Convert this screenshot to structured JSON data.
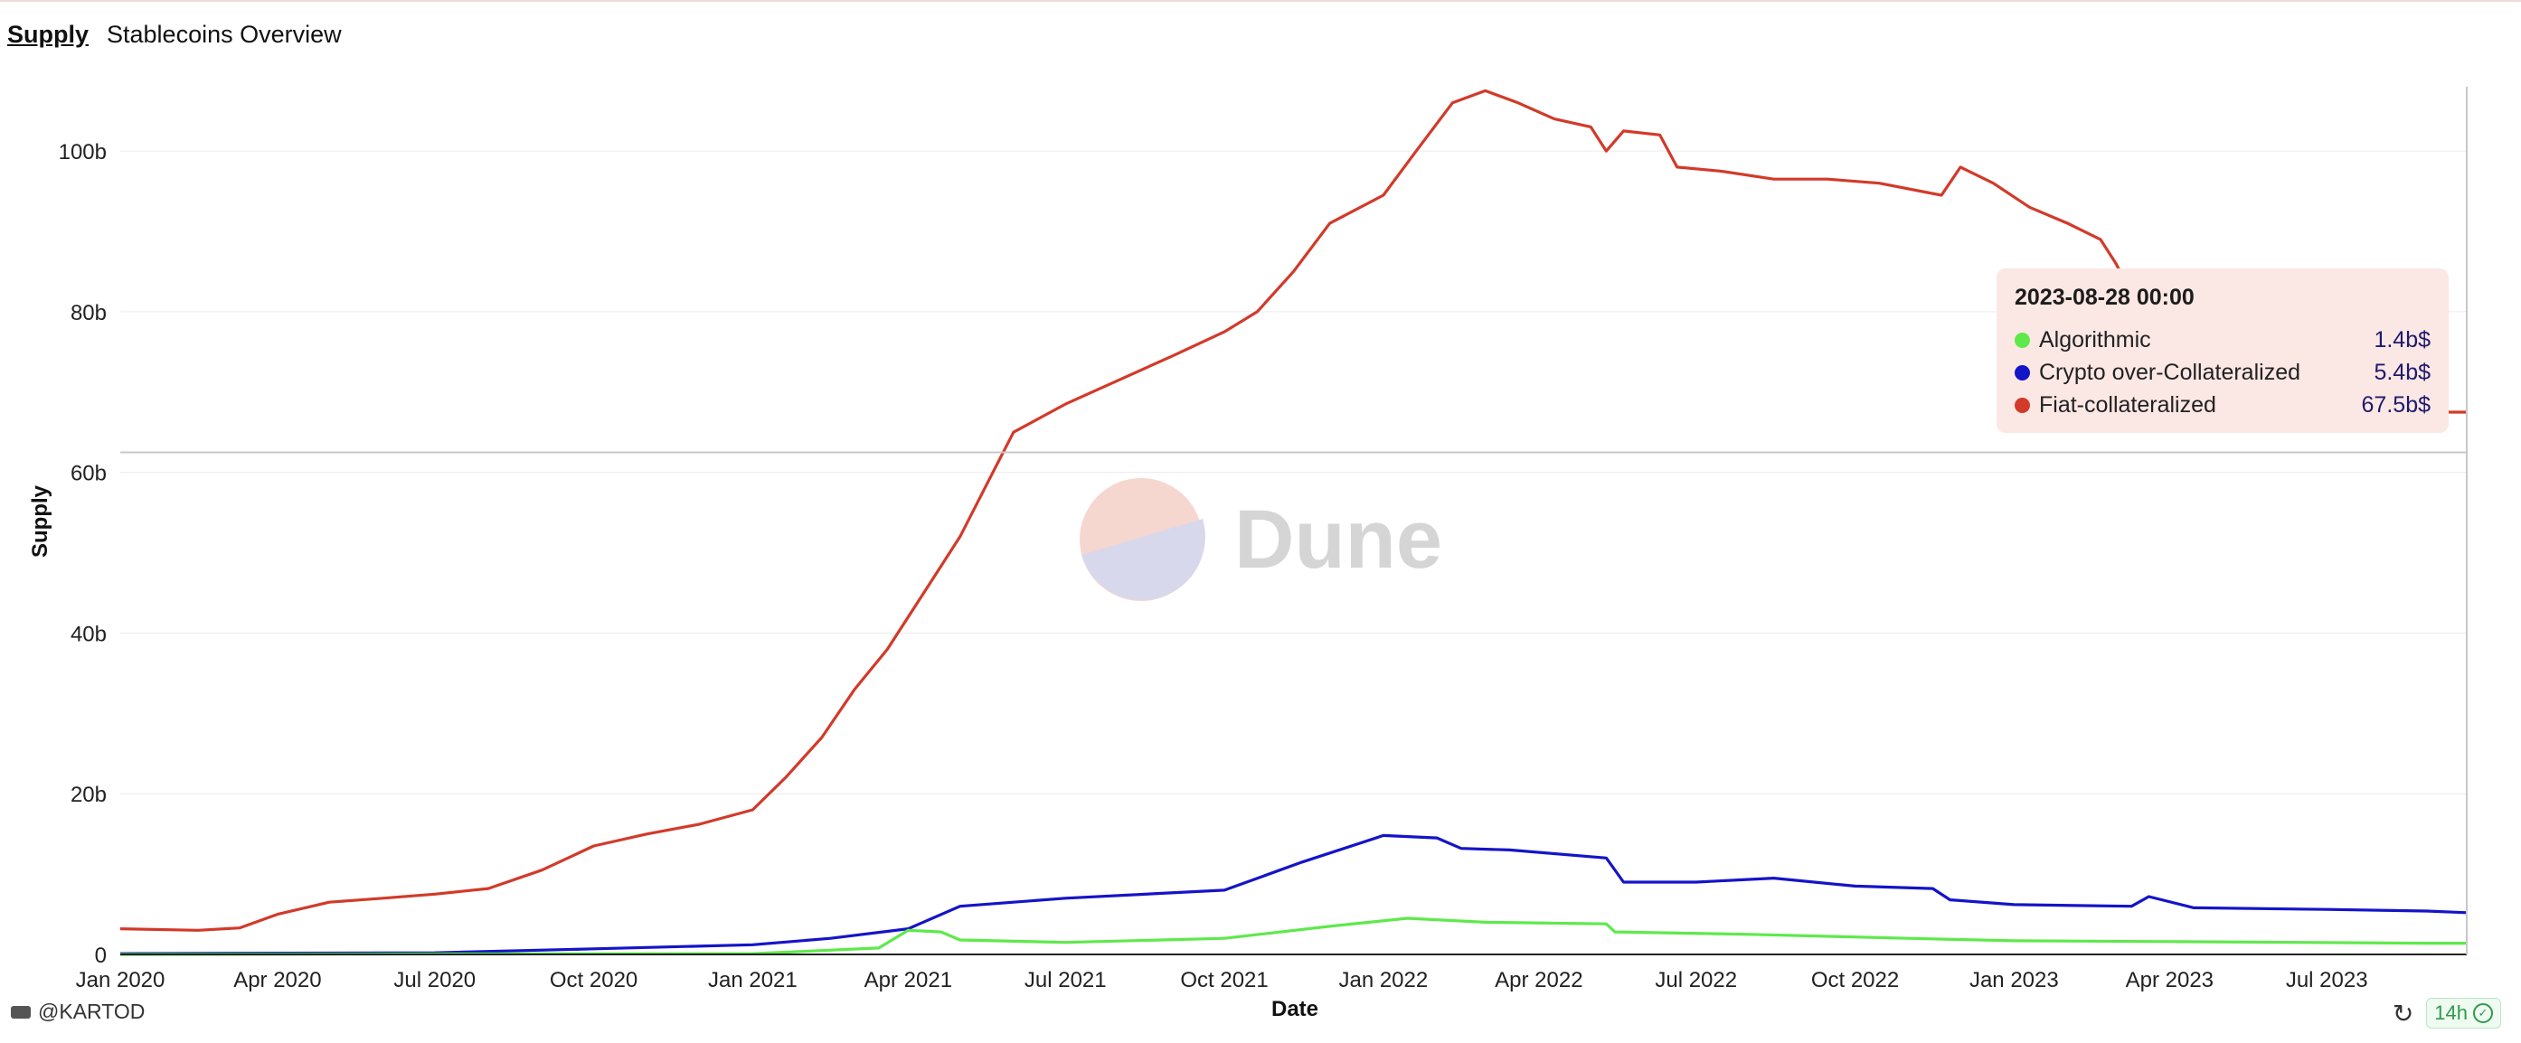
{
  "header": {
    "tab": "Supply",
    "title": "Stablecoins Overview"
  },
  "footer": {
    "author": "@KARTOD",
    "freshness": "14h"
  },
  "tooltip": {
    "date": "2023-08-28 00:00",
    "rows": [
      {
        "name": "Algorithmic",
        "value": "1.4b$",
        "color": "#5ee94b"
      },
      {
        "name": "Crypto over-Collateralized",
        "value": "5.4b$",
        "color": "#1414c8"
      },
      {
        "name": "Fiat-collateralized",
        "value": "67.5b$",
        "color": "#d23a2a"
      }
    ]
  },
  "watermark": "Dune",
  "chart_data": {
    "type": "line",
    "xlabel": "Date",
    "ylabel": "Supply",
    "ylim": [
      0,
      108
    ],
    "xlim": [
      "2020-01-01",
      "2023-09-20"
    ],
    "yticks": [
      0,
      20,
      40,
      60,
      80,
      100
    ],
    "ytick_labels": [
      "0",
      "20b",
      "40b",
      "60b",
      "80b",
      "100b"
    ],
    "xticks": [
      "2020-01-01",
      "2020-04-01",
      "2020-07-01",
      "2020-10-01",
      "2021-01-01",
      "2021-04-01",
      "2021-07-01",
      "2021-10-01",
      "2022-01-01",
      "2022-04-01",
      "2022-07-01",
      "2022-10-01",
      "2023-01-01",
      "2023-04-01",
      "2023-07-01"
    ],
    "xtick_labels": [
      "Jan 2020",
      "Apr 2020",
      "Jul 2020",
      "Oct 2020",
      "Jan 2021",
      "Apr 2021",
      "Jul 2021",
      "Oct 2021",
      "Jan 2022",
      "Apr 2022",
      "Jul 2022",
      "Oct 2022",
      "Jan 2023",
      "Apr 2023",
      "Jul 2023"
    ],
    "grid": true,
    "hover_date": "2023-09-20",
    "hover_value": 62.5,
    "series": [
      {
        "name": "Fiat-collateralized",
        "color": "#d23a2a",
        "points": [
          [
            "2020-01-01",
            3.2
          ],
          [
            "2020-02-15",
            3.0
          ],
          [
            "2020-03-10",
            3.3
          ],
          [
            "2020-04-01",
            5.0
          ],
          [
            "2020-05-01",
            6.5
          ],
          [
            "2020-06-01",
            7.0
          ],
          [
            "2020-07-01",
            7.5
          ],
          [
            "2020-08-01",
            8.2
          ],
          [
            "2020-09-01",
            10.5
          ],
          [
            "2020-10-01",
            13.5
          ],
          [
            "2020-11-01",
            15.0
          ],
          [
            "2020-12-01",
            16.2
          ],
          [
            "2021-01-01",
            18.0
          ],
          [
            "2021-01-20",
            22.0
          ],
          [
            "2021-02-10",
            27.0
          ],
          [
            "2021-03-01",
            33.0
          ],
          [
            "2021-03-20",
            38.0
          ],
          [
            "2021-04-10",
            45.0
          ],
          [
            "2021-05-01",
            52.0
          ],
          [
            "2021-05-20",
            60.0
          ],
          [
            "2021-06-01",
            65.0
          ],
          [
            "2021-07-01",
            68.5
          ],
          [
            "2021-08-01",
            71.5
          ],
          [
            "2021-09-01",
            74.5
          ],
          [
            "2021-10-01",
            77.5
          ],
          [
            "2021-10-20",
            80.0
          ],
          [
            "2021-11-10",
            85.0
          ],
          [
            "2021-12-01",
            91.0
          ],
          [
            "2022-01-01",
            94.5
          ],
          [
            "2022-01-20",
            100.0
          ],
          [
            "2022-02-10",
            106.0
          ],
          [
            "2022-03-01",
            107.5
          ],
          [
            "2022-03-20",
            106.0
          ],
          [
            "2022-04-10",
            104.0
          ],
          [
            "2022-05-01",
            103.0
          ],
          [
            "2022-05-10",
            100.0
          ],
          [
            "2022-05-20",
            102.5
          ],
          [
            "2022-06-10",
            102.0
          ],
          [
            "2022-06-20",
            98.0
          ],
          [
            "2022-07-15",
            97.5
          ],
          [
            "2022-08-15",
            96.5
          ],
          [
            "2022-09-15",
            96.5
          ],
          [
            "2022-10-15",
            96.0
          ],
          [
            "2022-11-20",
            94.5
          ],
          [
            "2022-12-01",
            98.0
          ],
          [
            "2022-12-20",
            96.0
          ],
          [
            "2023-01-10",
            93.0
          ],
          [
            "2023-02-01",
            91.0
          ],
          [
            "2023-02-20",
            89.0
          ],
          [
            "2023-03-01",
            86.0
          ],
          [
            "2023-03-15",
            80.0
          ],
          [
            "2023-04-15",
            75.0
          ],
          [
            "2023-05-15",
            72.0
          ],
          [
            "2023-06-15",
            70.0
          ],
          [
            "2023-07-15",
            68.5
          ],
          [
            "2023-08-28",
            67.5
          ],
          [
            "2023-09-20",
            67.5
          ]
        ]
      },
      {
        "name": "Crypto over-Collateralized",
        "color": "#1414c8",
        "points": [
          [
            "2020-01-01",
            0.1
          ],
          [
            "2020-07-01",
            0.2
          ],
          [
            "2020-10-01",
            0.7
          ],
          [
            "2021-01-01",
            1.2
          ],
          [
            "2021-02-15",
            2.0
          ],
          [
            "2021-04-01",
            3.2
          ],
          [
            "2021-05-01",
            6.0
          ],
          [
            "2021-06-01",
            6.5
          ],
          [
            "2021-07-01",
            7.0
          ],
          [
            "2021-10-01",
            8.0
          ],
          [
            "2021-11-15",
            11.5
          ],
          [
            "2022-01-01",
            14.8
          ],
          [
            "2022-02-01",
            14.5
          ],
          [
            "2022-02-15",
            13.2
          ],
          [
            "2022-03-15",
            13.0
          ],
          [
            "2022-05-10",
            12.0
          ],
          [
            "2022-05-20",
            9.0
          ],
          [
            "2022-07-01",
            9.0
          ],
          [
            "2022-08-15",
            9.5
          ],
          [
            "2022-10-01",
            8.5
          ],
          [
            "2022-11-15",
            8.2
          ],
          [
            "2022-11-25",
            6.8
          ],
          [
            "2023-01-01",
            6.2
          ],
          [
            "2023-03-10",
            6.0
          ],
          [
            "2023-03-20",
            7.2
          ],
          [
            "2023-04-15",
            5.8
          ],
          [
            "2023-07-01",
            5.6
          ],
          [
            "2023-08-28",
            5.4
          ],
          [
            "2023-09-20",
            5.2
          ]
        ]
      },
      {
        "name": "Algorithmic",
        "color": "#5ee94b",
        "points": [
          [
            "2020-01-01",
            0.0
          ],
          [
            "2021-01-01",
            0.1
          ],
          [
            "2021-03-15",
            0.8
          ],
          [
            "2021-04-01",
            3.0
          ],
          [
            "2021-04-20",
            2.8
          ],
          [
            "2021-05-01",
            1.8
          ],
          [
            "2021-07-01",
            1.5
          ],
          [
            "2021-10-01",
            2.0
          ],
          [
            "2021-12-01",
            3.5
          ],
          [
            "2022-01-15",
            4.5
          ],
          [
            "2022-03-01",
            4.0
          ],
          [
            "2022-05-10",
            3.8
          ],
          [
            "2022-05-15",
            2.8
          ],
          [
            "2022-08-01",
            2.5
          ],
          [
            "2022-11-01",
            2.0
          ],
          [
            "2023-01-01",
            1.7
          ],
          [
            "2023-04-01",
            1.6
          ],
          [
            "2023-08-28",
            1.4
          ],
          [
            "2023-09-20",
            1.4
          ]
        ]
      }
    ]
  }
}
